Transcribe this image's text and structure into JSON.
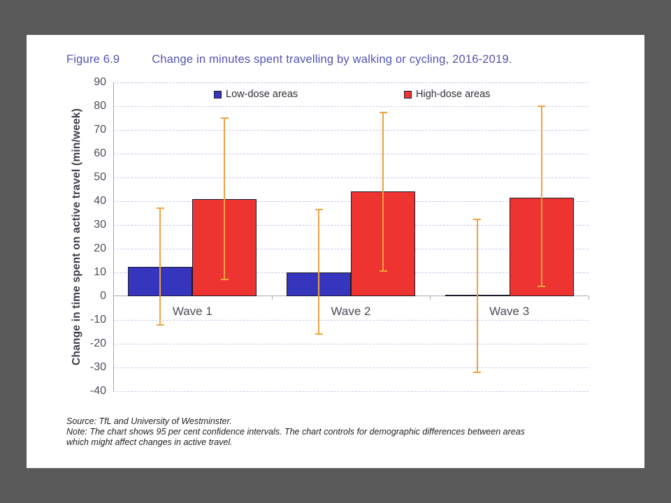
{
  "window": {
    "background": "#595959"
  },
  "slide": {
    "background": "#ffffff",
    "figure_label": "Figure 6.9",
    "title": "Change in minutes spent travelling by walking or cycling, 2016-2019.",
    "title_color": "#5353b5",
    "source": "Source: TfL and University of Westminster.",
    "note_lines": [
      "Note: The chart shows 95 per cent confidence intervals. The chart controls for demographic differences between areas",
      "which might affect changes in active travel."
    ]
  },
  "chart_data": {
    "type": "bar",
    "title": "Change in minutes spent travelling by walking or cycling, 2016-2019.",
    "categories": [
      "Wave 1",
      "Wave 2",
      "Wave 3"
    ],
    "series": [
      {
        "name": "Low-dose areas",
        "color": "#3535bd",
        "values": [
          12.5,
          10,
          0.5
        ],
        "ci_low": [
          -12,
          -16,
          -32
        ],
        "ci_high": [
          37,
          36.5,
          32.5
        ]
      },
      {
        "name": "High-dose areas",
        "color": "#ee3431",
        "values": [
          41,
          44,
          41.5
        ],
        "ci_low": [
          7,
          10.5,
          4
        ],
        "ci_high": [
          75,
          77.5,
          80
        ]
      }
    ],
    "xlabel": "",
    "ylabel": "Change in time spent on active travel (min/week)",
    "ylim": [
      -40,
      90
    ],
    "yticks": [
      90,
      80,
      70,
      60,
      50,
      40,
      30,
      20,
      10,
      0,
      -10,
      -20,
      -30,
      -40
    ],
    "grid": "horizontal-dashed",
    "legend_position": "top-inside",
    "gridline_color": "#c9c9ec",
    "axis_color": "#a9a9bb",
    "bar_border_color": "#1b1b28",
    "error_bar_color": "#f0a23f",
    "error_bars_note": "95 per cent confidence intervals"
  }
}
